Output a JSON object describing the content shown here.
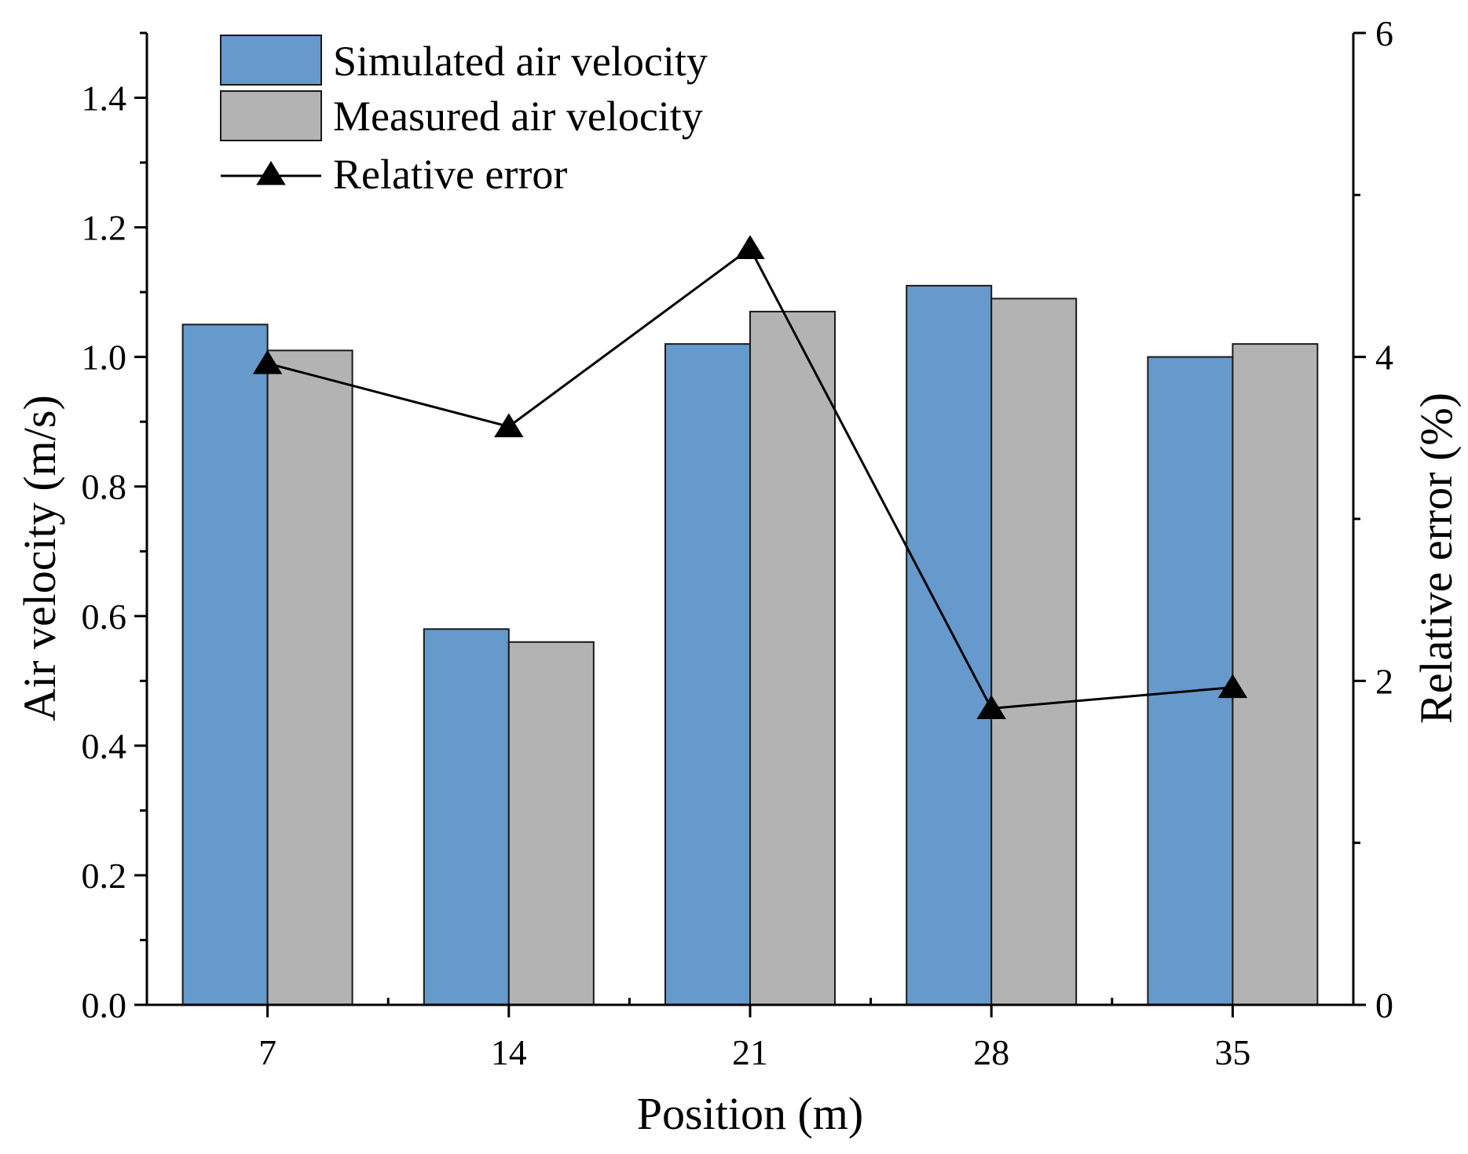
{
  "chart_data": {
    "type": "bar",
    "categories": [
      "7",
      "14",
      "21",
      "28",
      "35"
    ],
    "series": [
      {
        "name": "Simulated air velocity",
        "kind": "bar",
        "axis": "left",
        "color": "#6699cc",
        "values": [
          1.05,
          0.58,
          1.02,
          1.11,
          1.0
        ]
      },
      {
        "name": "Measured air velocity",
        "kind": "bar",
        "axis": "left",
        "color": "#b3b3b3",
        "values": [
          1.01,
          0.56,
          1.07,
          1.09,
          1.02
        ]
      },
      {
        "name": "Relative error",
        "kind": "line",
        "marker": "triangle",
        "axis": "right",
        "color": "#000000",
        "values": [
          3.96,
          3.57,
          4.67,
          1.83,
          1.96
        ]
      }
    ],
    "xlabel": "Position (m)",
    "ylabel": "Air velocity (m/s)",
    "y2label": "Relative error (%)",
    "ylim": [
      0,
      1.5
    ],
    "y2lim": [
      0,
      6
    ],
    "yticks": [
      "0.0",
      "0.2",
      "0.4",
      "0.6",
      "0.8",
      "1.0",
      "1.2",
      "1.4"
    ],
    "y2ticks": [
      "0",
      "2",
      "4",
      "6"
    ],
    "legend_position": "top-left",
    "grid": false
  }
}
